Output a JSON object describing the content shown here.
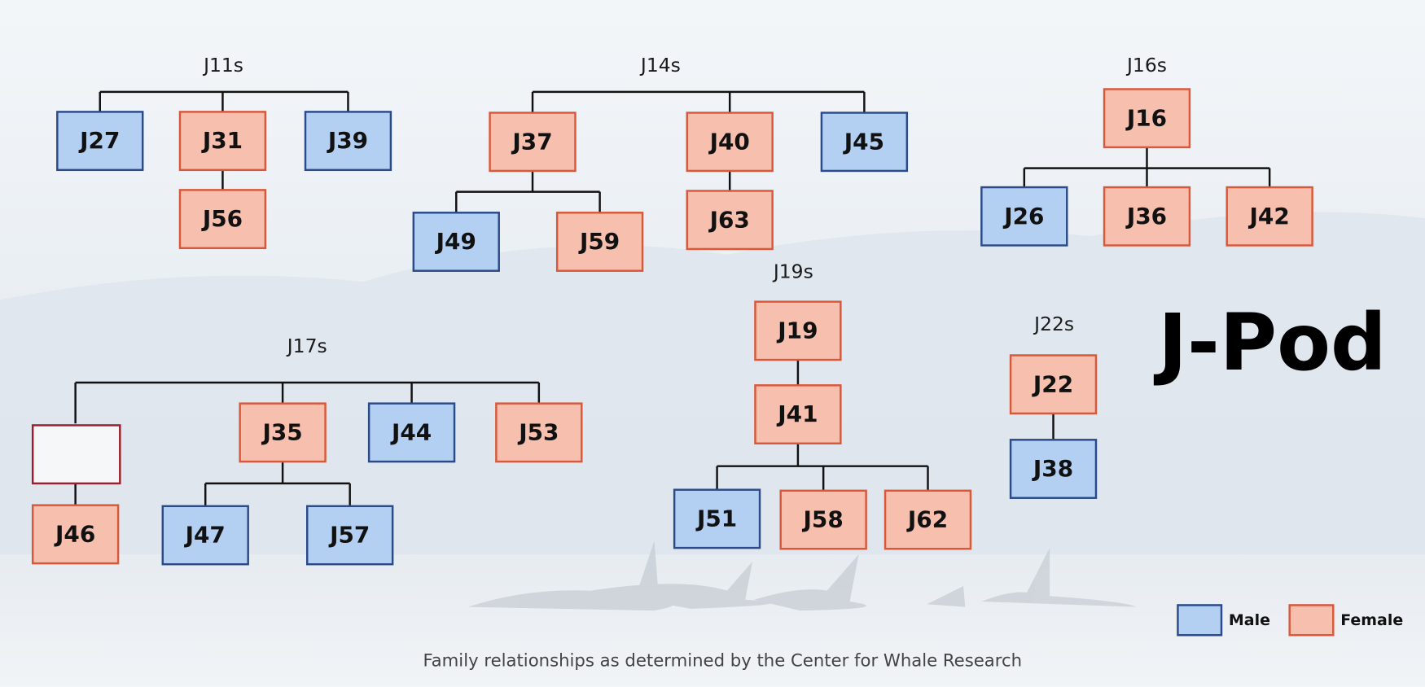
{
  "title": "J-Pod",
  "caption": "Family relationships as determined by the Center for Whale Research",
  "legend": [
    {
      "label": "Male",
      "sex": "male"
    },
    {
      "label": "Female",
      "sex": "female"
    }
  ],
  "families": [
    {
      "title": "J11s",
      "nodes": [
        {
          "label": "J27",
          "sex": "male"
        },
        {
          "label": "J31",
          "sex": "female"
        },
        {
          "label": "J39",
          "sex": "male"
        },
        {
          "label": "J56",
          "sex": "female"
        }
      ]
    },
    {
      "title": "J14s",
      "nodes": [
        {
          "label": "J37",
          "sex": "female"
        },
        {
          "label": "J40",
          "sex": "female"
        },
        {
          "label": "J45",
          "sex": "male"
        },
        {
          "label": "J49",
          "sex": "male"
        },
        {
          "label": "J59",
          "sex": "female"
        },
        {
          "label": "J63",
          "sex": "female"
        }
      ]
    },
    {
      "title": "J16s",
      "nodes": [
        {
          "label": "J16",
          "sex": "female"
        },
        {
          "label": "J26",
          "sex": "male"
        },
        {
          "label": "J36",
          "sex": "female"
        },
        {
          "label": "J42",
          "sex": "female"
        }
      ]
    },
    {
      "title": "J19s",
      "nodes": [
        {
          "label": "J19",
          "sex": "female"
        },
        {
          "label": "J41",
          "sex": "female"
        },
        {
          "label": "J51",
          "sex": "male"
        },
        {
          "label": "J58",
          "sex": "female"
        },
        {
          "label": "J62",
          "sex": "female"
        }
      ]
    },
    {
      "title": "J22s",
      "nodes": [
        {
          "label": "J22",
          "sex": "female"
        },
        {
          "label": "J38",
          "sex": "male"
        }
      ]
    },
    {
      "title": "J17s",
      "nodes": [
        {
          "label": "J35",
          "sex": "female"
        },
        {
          "label": "J44",
          "sex": "male"
        },
        {
          "label": "J53",
          "sex": "female"
        },
        {
          "label": "J46",
          "sex": "female"
        },
        {
          "label": "J47",
          "sex": "male"
        },
        {
          "label": "J57",
          "sex": "male"
        }
      ]
    }
  ]
}
